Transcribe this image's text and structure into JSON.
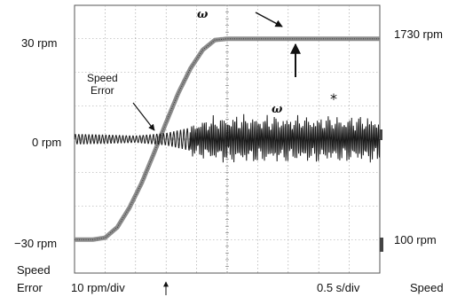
{
  "chart_data": {
    "type": "line",
    "x_per_div": "0.5 s/div",
    "grid": true,
    "left_axis": {
      "title": "Speed Error",
      "scale": "10 rpm/div",
      "ticks": [
        "30 rpm",
        "0 rpm",
        "−30 rpm"
      ],
      "range_rpm": [
        -40,
        40
      ]
    },
    "right_axis": {
      "title": "Speed",
      "ticks": [
        "1730 rpm",
        "100 rpm"
      ],
      "range_rpm": [
        100,
        1730
      ]
    },
    "annotations": {
      "speed_error_label": [
        "Speed",
        "Error"
      ],
      "omega_symbol": "ω",
      "asterisk": "*"
    },
    "series": [
      {
        "key": "speed",
        "axis": "right",
        "x_s": [
          0,
          0.3,
          0.5,
          0.7,
          0.9,
          1.1,
          1.3,
          1.5,
          1.7,
          1.9,
          2.1,
          2.3,
          2.5,
          2.7,
          3.0,
          3.5,
          4.0,
          4.5,
          5.0
        ],
        "y_rpm": [
          100,
          100,
          115,
          200,
          360,
          560,
          800,
          1050,
          1290,
          1490,
          1640,
          1720,
          1730,
          1730,
          1730,
          1730,
          1730,
          1730,
          1730
        ]
      },
      {
        "key": "speed_error",
        "axis": "left",
        "x_s": [
          0,
          0.5,
          1.0,
          1.5,
          1.9,
          2.2,
          2.5,
          3.0,
          3.5,
          4.0,
          4.5,
          5.0
        ],
        "envelope_rpm": [
          1.5,
          1.3,
          1.0,
          1.8,
          3.5,
          4.5,
          5.0,
          5.0,
          4.8,
          4.8,
          4.8,
          4.8
        ],
        "offset_rpm": [
          0,
          0,
          0,
          0,
          0,
          0,
          0,
          0,
          0,
          0,
          0,
          0
        ]
      }
    ]
  },
  "labels": {
    "left_tick_top": "30 rpm",
    "left_tick_mid": "0 rpm",
    "left_tick_bot": "−30 rpm",
    "right_tick_top": "1730 rpm",
    "right_tick_bot": "100 rpm",
    "speed_error_axis_line1": "Speed",
    "speed_error_axis_line2": "Error",
    "left_scale": "10 rpm/div",
    "time_scale": "0.5 s/div",
    "right_axis_title": "Speed",
    "annot_line1": "Speed",
    "annot_line2": "Error",
    "omega": "ω",
    "star": "*"
  }
}
